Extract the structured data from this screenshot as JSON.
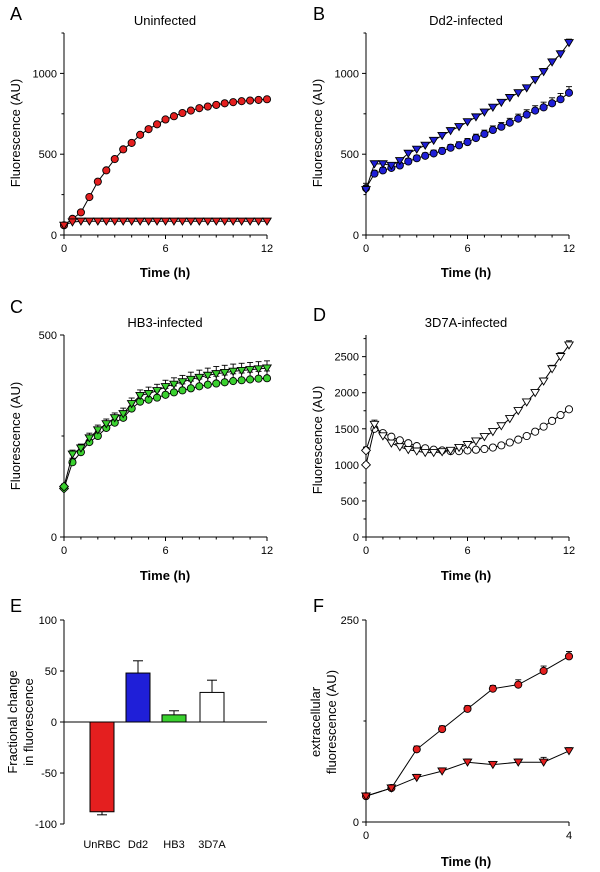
{
  "colors": {
    "red": "#e41f1f",
    "blue": "#1f1fd8",
    "green": "#3ad12f",
    "white": "#ffffff",
    "axis": "#000000"
  },
  "chart_data": [
    {
      "panel": "A",
      "title": "Uninfected",
      "type": "line",
      "xlabel": "Time (h)",
      "ylabel": "Fluorescence (AU)",
      "xlim": [
        0,
        12
      ],
      "ylim": [
        0,
        1250
      ],
      "xticks": [
        0,
        6,
        12
      ],
      "yticks": [
        0,
        500,
        1000
      ],
      "series": [
        {
          "name": "circles",
          "marker": "circle",
          "color": "#e41f1f",
          "x": [
            0,
            0.5,
            1,
            1.5,
            2,
            2.5,
            3,
            3.5,
            4,
            4.5,
            5,
            5.5,
            6,
            6.5,
            7,
            7.5,
            8,
            8.5,
            9,
            9.5,
            10,
            10.5,
            11,
            11.5,
            12
          ],
          "values": [
            60,
            100,
            140,
            235,
            330,
            400,
            470,
            530,
            570,
            620,
            655,
            685,
            715,
            735,
            755,
            770,
            785,
            795,
            805,
            815,
            822,
            828,
            832,
            836,
            840
          ],
          "err": [
            10,
            12,
            12,
            12,
            12,
            12,
            12,
            12,
            12,
            12,
            12,
            12,
            12,
            12,
            12,
            12,
            12,
            12,
            12,
            12,
            12,
            12,
            12,
            12,
            12
          ]
        },
        {
          "name": "triangles",
          "marker": "triangle",
          "color": "#e41f1f",
          "x": [
            0,
            0.5,
            1,
            1.5,
            2,
            2.5,
            3,
            3.5,
            4,
            4.5,
            5,
            5.5,
            6,
            6.5,
            7,
            7.5,
            8,
            8.5,
            9,
            9.5,
            10,
            10.5,
            11,
            11.5,
            12
          ],
          "values": [
            60,
            80,
            85,
            85,
            85,
            85,
            85,
            85,
            85,
            85,
            85,
            85,
            85,
            85,
            85,
            85,
            85,
            85,
            85,
            85,
            85,
            85,
            85,
            85,
            85
          ],
          "err": [
            8,
            8,
            6,
            6,
            6,
            6,
            6,
            6,
            6,
            6,
            6,
            6,
            6,
            6,
            6,
            6,
            6,
            6,
            6,
            6,
            6,
            6,
            6,
            6,
            6
          ]
        }
      ]
    },
    {
      "panel": "B",
      "title": "Dd2-infected",
      "type": "line",
      "xlabel": "Time (h)",
      "ylabel": "Fluorescence (AU)",
      "xlim": [
        0,
        12
      ],
      "ylim": [
        0,
        1250
      ],
      "xticks": [
        0,
        6,
        12
      ],
      "yticks": [
        0,
        500,
        1000
      ],
      "series": [
        {
          "name": "circles",
          "marker": "circle",
          "color": "#1f1fd8",
          "x": [
            0,
            0.5,
            1,
            1.5,
            2,
            2.5,
            3,
            3.5,
            4,
            4.5,
            5,
            5.5,
            6,
            6.5,
            7,
            7.5,
            8,
            8.5,
            9,
            9.5,
            10,
            10.5,
            11,
            11.5,
            12
          ],
          "values": [
            290,
            380,
            400,
            415,
            430,
            455,
            475,
            490,
            505,
            520,
            540,
            555,
            575,
            600,
            625,
            650,
            670,
            695,
            720,
            745,
            770,
            790,
            815,
            840,
            880
          ],
          "err": [
            30,
            20,
            18,
            18,
            18,
            18,
            18,
            18,
            20,
            20,
            20,
            22,
            22,
            24,
            24,
            25,
            26,
            27,
            28,
            30,
            30,
            32,
            34,
            36,
            38
          ]
        },
        {
          "name": "triangles",
          "marker": "triangle",
          "color": "#1f1fd8",
          "x": [
            0,
            0.5,
            1,
            1.5,
            2,
            2.5,
            3,
            3.5,
            4,
            4.5,
            5,
            5.5,
            6,
            6.5,
            7,
            7.5,
            8,
            8.5,
            9,
            9.5,
            10,
            10.5,
            11,
            11.5,
            12
          ],
          "values": [
            280,
            440,
            440,
            430,
            460,
            505,
            530,
            555,
            585,
            615,
            645,
            670,
            700,
            730,
            760,
            790,
            820,
            850,
            880,
            910,
            960,
            1010,
            1070,
            1120,
            1190
          ],
          "err": [
            25,
            18,
            16,
            16,
            16,
            16,
            16,
            16,
            16,
            18,
            18,
            18,
            18,
            18,
            18,
            18,
            18,
            18,
            18,
            18,
            20,
            20,
            20,
            20,
            22
          ]
        }
      ]
    },
    {
      "panel": "C",
      "title": "HB3-infected",
      "type": "line",
      "xlabel": "Time (h)",
      "ylabel": "Fluorescence (AU)",
      "xlim": [
        0,
        12
      ],
      "ylim": [
        0,
        500
      ],
      "xticks": [
        0,
        6,
        12
      ],
      "yticks": [
        0,
        500
      ],
      "series": [
        {
          "name": "circles",
          "marker": "circle",
          "color": "#3ad12f",
          "x": [
            0,
            0.5,
            1,
            1.5,
            2,
            2.5,
            3,
            3.5,
            4,
            4.5,
            5,
            5.5,
            6,
            6.5,
            7,
            7.5,
            8,
            8.5,
            9,
            9.5,
            10,
            10.5,
            11,
            11.5,
            12
          ],
          "values": [
            120,
            185,
            210,
            235,
            250,
            270,
            283,
            295,
            318,
            335,
            340,
            345,
            352,
            358,
            363,
            368,
            373,
            377,
            380,
            383,
            386,
            388,
            390,
            392,
            393
          ],
          "err": [
            6,
            10,
            10,
            12,
            12,
            12,
            12,
            14,
            14,
            14,
            16,
            16,
            16,
            16,
            16,
            18,
            18,
            18,
            18,
            18,
            18,
            18,
            18,
            18,
            18
          ]
        },
        {
          "name": "triangles",
          "marker": "triangle",
          "color": "#3ad12f",
          "x": [
            0,
            0.5,
            1,
            1.5,
            2,
            2.5,
            3,
            3.5,
            4,
            4.5,
            5,
            5.5,
            6,
            6.5,
            7,
            7.5,
            8,
            8.5,
            9,
            9.5,
            10,
            10.5,
            11,
            11.5,
            12
          ],
          "values": [
            125,
            205,
            220,
            245,
            265,
            280,
            295,
            305,
            330,
            350,
            355,
            362,
            372,
            378,
            384,
            390,
            395,
            400,
            404,
            407,
            410,
            412,
            414,
            416,
            418
          ],
          "err": [
            6,
            10,
            10,
            12,
            12,
            12,
            12,
            14,
            14,
            14,
            16,
            16,
            16,
            16,
            16,
            18,
            18,
            18,
            18,
            18,
            18,
            18,
            18,
            18,
            18
          ]
        }
      ]
    },
    {
      "panel": "D",
      "title": "3D7A-infected",
      "type": "line",
      "xlabel": "Time (h)",
      "ylabel": "Fluorescence (AU)",
      "xlim": [
        0,
        12
      ],
      "ylim": [
        0,
        2800
      ],
      "xticks": [
        0,
        6,
        12
      ],
      "yticks": [
        0,
        500,
        1000,
        1500,
        2000,
        2500
      ],
      "series": [
        {
          "name": "circles",
          "marker": "circle",
          "color": "#ffffff",
          "x": [
            0,
            0.5,
            1,
            1.5,
            2,
            2.5,
            3,
            3.5,
            4,
            4.5,
            5,
            5.5,
            6,
            6.5,
            7,
            7.5,
            8,
            8.5,
            9,
            9.5,
            10,
            10.5,
            11,
            11.5,
            12
          ],
          "values": [
            1000,
            1500,
            1440,
            1390,
            1340,
            1300,
            1260,
            1230,
            1210,
            1200,
            1190,
            1190,
            1200,
            1210,
            1220,
            1240,
            1270,
            1310,
            1350,
            1400,
            1460,
            1530,
            1610,
            1690,
            1770
          ],
          "err": [
            30,
            30,
            25,
            25,
            25,
            25,
            25,
            25,
            25,
            25,
            25,
            25,
            25,
            25,
            25,
            25,
            25,
            25,
            25,
            25,
            25,
            25,
            25,
            30,
            30
          ]
        },
        {
          "name": "triangles",
          "marker": "triangle",
          "color": "#ffffff",
          "x": [
            0,
            0.5,
            1,
            1.5,
            2,
            2.5,
            3,
            3.5,
            4,
            4.5,
            5,
            5.5,
            6,
            6.5,
            7,
            7.5,
            8,
            8.5,
            9,
            9.5,
            10,
            10.5,
            11,
            11.5,
            12
          ],
          "values": [
            1200,
            1560,
            1400,
            1300,
            1250,
            1210,
            1190,
            1170,
            1170,
            1180,
            1200,
            1240,
            1280,
            1330,
            1390,
            1460,
            1540,
            1640,
            1750,
            1870,
            2000,
            2160,
            2330,
            2500,
            2660
          ],
          "err": [
            40,
            60,
            40,
            30,
            30,
            30,
            30,
            30,
            30,
            30,
            30,
            30,
            30,
            30,
            30,
            30,
            30,
            35,
            35,
            40,
            40,
            45,
            50,
            55,
            60
          ]
        }
      ]
    },
    {
      "panel": "E",
      "type": "bar",
      "ylabel": "Fractional change in fluorescence",
      "ylabel_lines": [
        "Fractional change",
        "in fluorescence"
      ],
      "categories": [
        "UnRBC",
        "Dd2",
        "HB3",
        "3D7A"
      ],
      "values": [
        -88,
        48,
        7,
        29
      ],
      "err": [
        3,
        12,
        4,
        12
      ],
      "bar_colors": [
        "#e41f1f",
        "#1f1fd8",
        "#3ad12f",
        "#ffffff"
      ],
      "ylim": [
        -100,
        100
      ],
      "yticks": [
        -100,
        -50,
        0,
        50,
        100
      ]
    },
    {
      "panel": "F",
      "type": "line",
      "xlabel": "Time (h)",
      "ylabel": "extracellular fluorescence (AU)",
      "ylabel_lines": [
        "extracellular",
        "fluorescence  (AU)"
      ],
      "xlim": [
        0,
        4
      ],
      "ylim": [
        0,
        250
      ],
      "xticks": [
        0,
        4
      ],
      "yticks": [
        0,
        250
      ],
      "series": [
        {
          "name": "circles",
          "marker": "circle",
          "color": "#e41f1f",
          "x": [
            0,
            0.5,
            1,
            1.5,
            2,
            2.5,
            3,
            3.5,
            4
          ],
          "values": [
            32,
            42,
            90,
            115,
            140,
            165,
            170,
            187,
            205
          ],
          "err": [
            3,
            4,
            4,
            4,
            4,
            4,
            6,
            6,
            6
          ]
        },
        {
          "name": "triangles",
          "marker": "triangle",
          "color": "#e41f1f",
          "x": [
            0,
            0.5,
            1,
            1.5,
            2,
            2.5,
            3,
            3.5,
            4
          ],
          "values": [
            32,
            42,
            55,
            63,
            74,
            71,
            74,
            74,
            88
          ],
          "err": [
            3,
            4,
            4,
            4,
            4,
            4,
            4,
            6,
            4
          ]
        }
      ]
    }
  ]
}
